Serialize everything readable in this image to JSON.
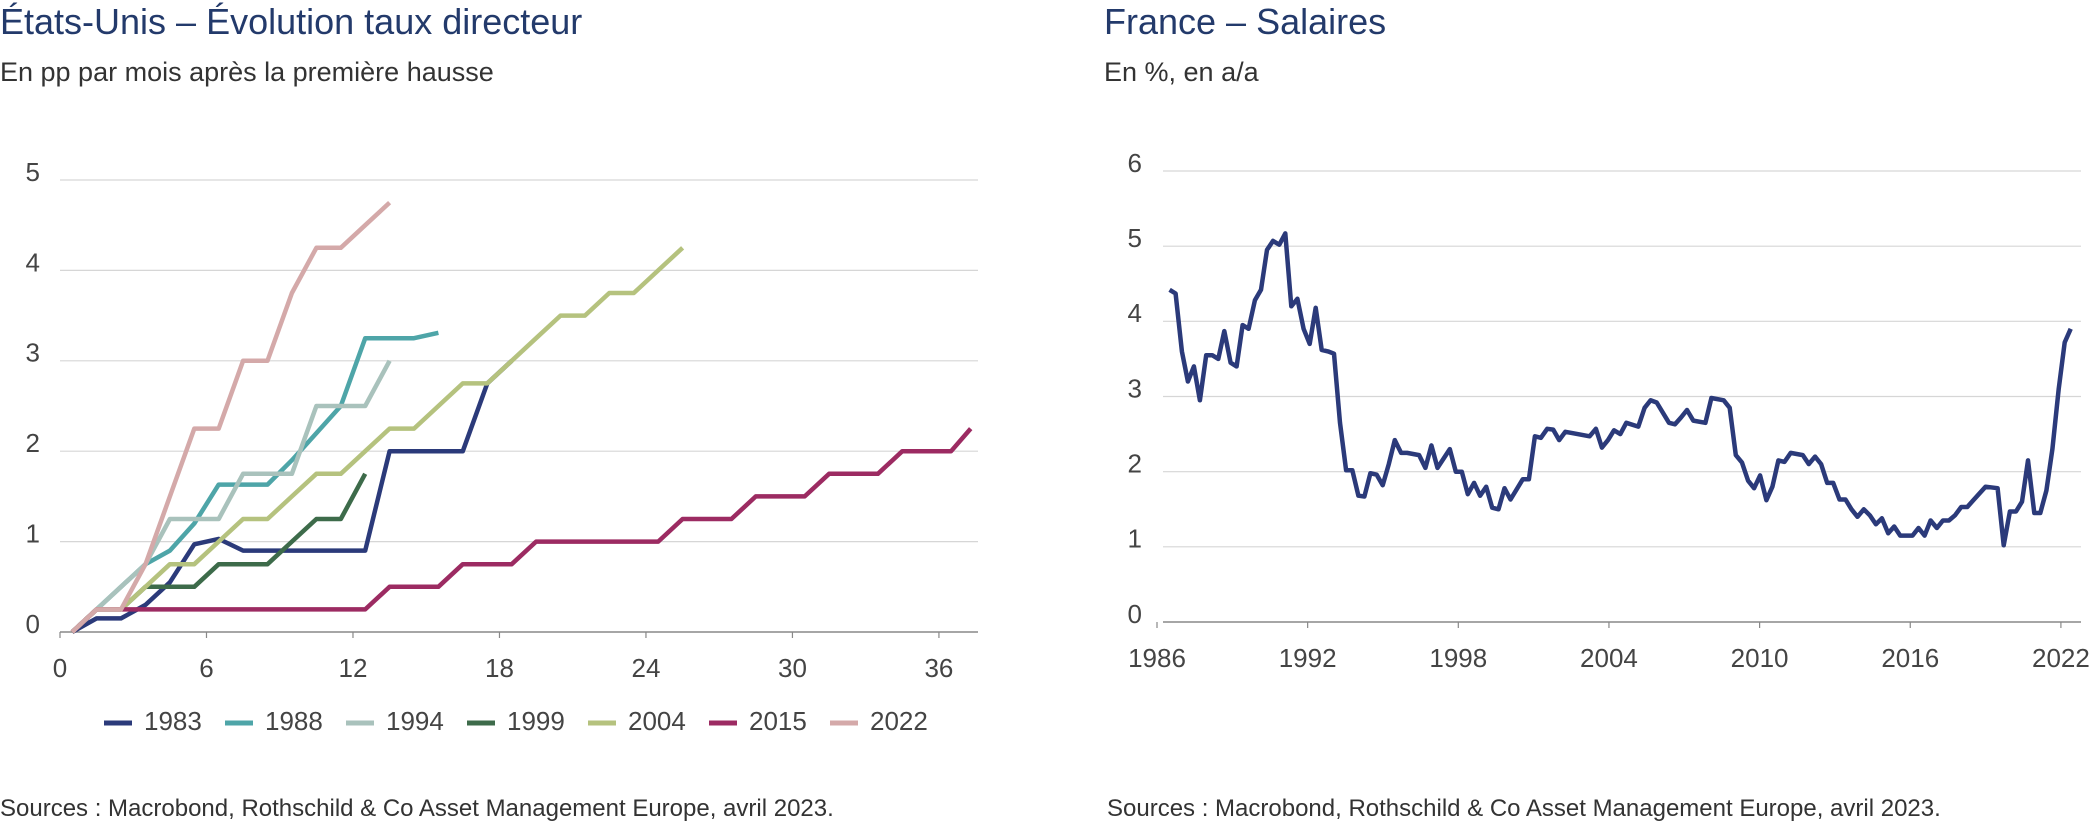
{
  "chart_data": [
    {
      "type": "line",
      "title": "États-Unis – Évolution taux directeur",
      "subtitle": "En pp par mois après la première hausse",
      "source": "Sources : Macrobond, Rothschild & Co Asset Management Europe, avril 2023.",
      "xlim": [
        0,
        37.6
      ],
      "ylim": [
        0,
        5
      ],
      "xticks": [
        0,
        6,
        12,
        18,
        24,
        30,
        36
      ],
      "yticks": [
        0,
        1,
        2,
        3,
        4,
        5
      ],
      "grid": true,
      "legend": "bottom",
      "series": [
        {
          "name": "1983",
          "color": "#2b3a7a",
          "x": [
            0.5,
            1.5,
            2.5,
            3.5,
            4.5,
            5.5,
            6.5,
            7.5,
            8.5,
            9.5,
            10.5,
            11.5,
            12.5,
            13.5,
            14.5,
            15.5,
            16.5,
            17.5,
            18.5
          ],
          "values": [
            0,
            0.15,
            0.15,
            0.3,
            0.55,
            0.97,
            1.03,
            0.9,
            0.9,
            0.9,
            0.9,
            0.9,
            0.9,
            2.0,
            2.0,
            2.0,
            2.0,
            2.75,
            3.0
          ]
        },
        {
          "name": "1988",
          "color": "#4ea5a8",
          "x": [
            0.5,
            1.5,
            2.5,
            3.5,
            4.5,
            5.5,
            6.5,
            7.5,
            8.5,
            9.5,
            10.5,
            11.5,
            12.5,
            13.5,
            14.5,
            15.5
          ],
          "values": [
            0,
            0.25,
            0.5,
            0.75,
            0.9,
            1.2,
            1.63,
            1.63,
            1.63,
            1.9,
            2.2,
            2.5,
            3.25,
            3.25,
            3.25,
            3.31
          ]
        },
        {
          "name": "1994",
          "color": "#a9c2bc",
          "x": [
            0.5,
            1.5,
            2.5,
            3.5,
            4.5,
            5.5,
            6.5,
            7.5,
            8.5,
            9.5,
            10.5,
            11.5,
            12.5,
            13.5
          ],
          "values": [
            0,
            0.25,
            0.5,
            0.75,
            1.25,
            1.25,
            1.25,
            1.75,
            1.75,
            1.75,
            2.5,
            2.5,
            2.5,
            3.0
          ]
        },
        {
          "name": "1999",
          "color": "#3d6b4a",
          "x": [
            0.5,
            1.5,
            2.5,
            3.5,
            4.5,
            5.5,
            6.5,
            7.5,
            8.5,
            9.5,
            10.5,
            11.5,
            12.5
          ],
          "values": [
            0,
            0.25,
            0.25,
            0.5,
            0.5,
            0.5,
            0.75,
            0.75,
            0.75,
            1.0,
            1.25,
            1.25,
            1.75
          ]
        },
        {
          "name": "2004",
          "color": "#b5c27e",
          "x": [
            0.5,
            1.5,
            2.5,
            3.5,
            4.5,
            5.5,
            6.5,
            7.5,
            8.5,
            9.5,
            10.5,
            11.5,
            12.5,
            13.5,
            14.5,
            15.5,
            16.5,
            17.5,
            18.5,
            19.5,
            20.5,
            21.5,
            22.5,
            23.5,
            24.5,
            25.5
          ],
          "values": [
            0,
            0.25,
            0.25,
            0.5,
            0.75,
            0.75,
            1.0,
            1.25,
            1.25,
            1.5,
            1.75,
            1.75,
            2.0,
            2.25,
            2.25,
            2.5,
            2.75,
            2.75,
            3.0,
            3.25,
            3.5,
            3.5,
            3.75,
            3.75,
            4.0,
            4.25
          ]
        },
        {
          "name": "2015",
          "color": "#9c2b62",
          "x": [
            0.5,
            1.5,
            2.5,
            3.5,
            4.5,
            5.5,
            6.5,
            7.5,
            8.5,
            9.5,
            10.5,
            11.5,
            12.5,
            13.5,
            14.5,
            15.5,
            16.5,
            17.5,
            18.5,
            19.5,
            20.5,
            21.5,
            22.5,
            23.5,
            24.5,
            25.5,
            26.5,
            27.5,
            28.5,
            29.5,
            30.5,
            31.5,
            32.5,
            33.5,
            34.5,
            35.5,
            36.5,
            37.3
          ],
          "values": [
            0,
            0.25,
            0.25,
            0.25,
            0.25,
            0.25,
            0.25,
            0.25,
            0.25,
            0.25,
            0.25,
            0.25,
            0.25,
            0.5,
            0.5,
            0.5,
            0.75,
            0.75,
            0.75,
            1.0,
            1.0,
            1.0,
            1.0,
            1.0,
            1.0,
            1.25,
            1.25,
            1.25,
            1.5,
            1.5,
            1.5,
            1.75,
            1.75,
            1.75,
            2.0,
            2.0,
            2.0,
            2.25
          ]
        },
        {
          "name": "2022",
          "color": "#d4a9a9",
          "x": [
            0.5,
            1.5,
            2.5,
            3.5,
            4.5,
            5.5,
            6.5,
            7.5,
            8.5,
            9.5,
            10.5,
            11.5,
            12.5,
            13.5
          ],
          "values": [
            0,
            0.25,
            0.25,
            0.75,
            1.5,
            2.25,
            2.25,
            3.0,
            3.0,
            3.75,
            4.25,
            4.25,
            4.5,
            4.75
          ]
        }
      ]
    },
    {
      "type": "line",
      "title": "France – Salaires",
      "subtitle": "En %, en a/a",
      "source": "Sources : Macrobond, Rothschild & Co Asset Management Europe, avril 2023.",
      "xlim": [
        1986,
        2022.8
      ],
      "ylim": [
        0,
        6
      ],
      "xticks": [
        1986,
        1992,
        1998,
        2004,
        2010,
        2016,
        2022
      ],
      "yticks": [
        0,
        1,
        2,
        3,
        4,
        5,
        6
      ],
      "grid": true,
      "color": "#2b3a7a",
      "x": [
        1986.5,
        1986.74,
        1986.99,
        1987.23,
        1987.47,
        1987.71,
        1987.96,
        1988.2,
        1988.44,
        1988.68,
        1988.93,
        1989.17,
        1989.41,
        1989.65,
        1989.9,
        1990.14,
        1990.38,
        1990.62,
        1990.87,
        1991.11,
        1991.35,
        1991.59,
        1991.84,
        1992.08,
        1992.32,
        1992.56,
        1992.81,
        1993.05,
        1993.29,
        1993.53,
        1993.78,
        1994.02,
        1994.26,
        1994.5,
        1994.75,
        1994.99,
        1995.23,
        1995.47,
        1995.72,
        1995.96,
        1996.44,
        1996.69,
        1996.93,
        1997.17,
        1997.66,
        1997.9,
        1998.14,
        1998.38,
        1998.63,
        1998.87,
        1999.11,
        1999.35,
        1999.6,
        1999.84,
        2000.08,
        2000.57,
        2000.81,
        2001.05,
        2001.29,
        2001.54,
        2001.78,
        2002.02,
        2002.26,
        2002.75,
        2003.23,
        2003.48,
        2003.72,
        2003.96,
        2004.2,
        2004.45,
        2004.69,
        2005.17,
        2005.42,
        2005.66,
        2005.9,
        2006.39,
        2006.63,
        2006.87,
        2007.11,
        2007.36,
        2007.84,
        2008.08,
        2008.57,
        2008.81,
        2009.05,
        2009.3,
        2009.54,
        2009.78,
        2010.02,
        2010.27,
        2010.51,
        2010.75,
        2010.99,
        2011.24,
        2011.72,
        2011.96,
        2012.21,
        2012.45,
        2012.69,
        2012.93,
        2013.18,
        2013.42,
        2013.66,
        2013.9,
        2014.15,
        2014.39,
        2014.63,
        2014.87,
        2015.12,
        2015.36,
        2015.6,
        2016.09,
        2016.33,
        2016.57,
        2016.81,
        2017.06,
        2017.3,
        2017.54,
        2017.78,
        2018.03,
        2018.27,
        2018.51,
        2019.0,
        2019.48,
        2019.72,
        2019.97,
        2020.21,
        2020.45,
        2020.69,
        2020.94,
        2021.18,
        2021.42,
        2021.66,
        2021.91,
        2022.15,
        2022.39
      ],
      "values": [
        4.42,
        4.37,
        3.6,
        3.2,
        3.4,
        2.95,
        3.55,
        3.55,
        3.5,
        3.87,
        3.45,
        3.4,
        3.95,
        3.9,
        4.28,
        4.42,
        4.95,
        5.07,
        5.02,
        5.17,
        4.2,
        4.3,
        3.9,
        3.7,
        4.18,
        3.62,
        3.6,
        3.57,
        2.65,
        2.02,
        2.02,
        1.68,
        1.67,
        1.98,
        1.96,
        1.82,
        2.1,
        2.42,
        2.25,
        2.25,
        2.22,
        2.05,
        2.35,
        2.05,
        2.3,
        2.0,
        2.0,
        1.7,
        1.85,
        1.68,
        1.8,
        1.52,
        1.5,
        1.78,
        1.63,
        1.9,
        1.9,
        2.47,
        2.45,
        2.57,
        2.56,
        2.42,
        2.53,
        2.5,
        2.47,
        2.57,
        2.32,
        2.42,
        2.55,
        2.5,
        2.65,
        2.6,
        2.85,
        2.95,
        2.92,
        2.65,
        2.63,
        2.72,
        2.82,
        2.68,
        2.65,
        2.98,
        2.95,
        2.85,
        2.22,
        2.12,
        1.88,
        1.78,
        1.95,
        1.62,
        1.8,
        2.15,
        2.13,
        2.25,
        2.22,
        2.1,
        2.2,
        2.1,
        1.85,
        1.85,
        1.63,
        1.63,
        1.5,
        1.4,
        1.5,
        1.42,
        1.3,
        1.38,
        1.18,
        1.27,
        1.15,
        1.15,
        1.25,
        1.15,
        1.35,
        1.25,
        1.35,
        1.35,
        1.42,
        1.53,
        1.53,
        1.62,
        1.8,
        1.78,
        1.02,
        1.47,
        1.47,
        1.6,
        2.15,
        1.45,
        1.45,
        1.75,
        2.3,
        3.1,
        3.72,
        3.9
      ]
    }
  ]
}
